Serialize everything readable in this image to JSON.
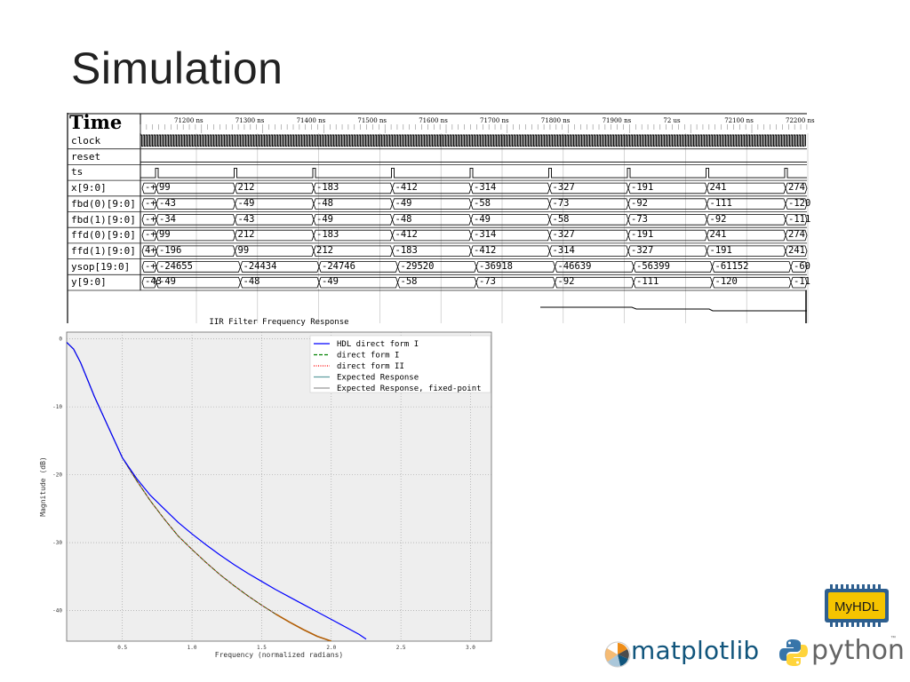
{
  "slide": {
    "title": "Simulation"
  },
  "waveform": {
    "title": "Time",
    "time_marks": [
      "71200 ns",
      "71300 ns",
      "71400 ns",
      "71500 ns",
      "71600 ns",
      "71700 ns",
      "71800 ns",
      "71900 ns",
      "72 us",
      "72100 ns",
      "72200 ns"
    ],
    "signals": [
      "clock",
      "reset",
      "ts",
      "x[9:0]",
      "fbd(0)[9:0]",
      "fbd(1)[9:0]",
      "ffd(0)[9:0]",
      "ffd(1)[9:0]",
      "ysop[19:0]",
      "y[9:0]"
    ],
    "rows": {
      "x": [
        "-+",
        "99",
        "212",
        "-183",
        "-412",
        "-314",
        "-327",
        "-191",
        "241",
        "274"
      ],
      "fbd0": [
        "-+",
        "-43",
        "-49",
        "-48",
        "-49",
        "-58",
        "-73",
        "-92",
        "-111",
        "-120"
      ],
      "fbd1": [
        "-+",
        "-34",
        "-43",
        "-49",
        "-48",
        "-49",
        "-58",
        "-73",
        "-92",
        "-111"
      ],
      "ffd0": [
        "-+",
        "99",
        "212",
        "-183",
        "-412",
        "-314",
        "-327",
        "-191",
        "241",
        "274"
      ],
      "ffd1": [
        "4+",
        "-196",
        "99",
        "212",
        "-183",
        "-412",
        "-314",
        "-327",
        "-191",
        "241"
      ],
      "ysop": [
        "-+",
        "-24655",
        "-24434",
        "-24746",
        "-29520",
        "-36918",
        "-46639",
        "-56399",
        "-61152",
        "-60"
      ],
      "y": [
        "-43",
        "-49",
        "-48",
        "-49",
        "-58",
        "-73",
        "-92",
        "-111",
        "-120",
        "-11"
      ]
    }
  },
  "chart_data": {
    "type": "line",
    "title": "IIR Filter Frequency Response",
    "xlabel": "Frequency (normalized radians)",
    "ylabel": "Magnitude (dB)",
    "xlim": [
      0.1,
      3.15
    ],
    "ylim": [
      -44.5,
      1
    ],
    "xticks": [
      "0.5",
      "1.0",
      "1.5",
      "2.0",
      "2.5",
      "3.0"
    ],
    "xtick_values": [
      0.5,
      1.0,
      1.5,
      2.0,
      2.5,
      3.0
    ],
    "yticks": [
      "0",
      "-10",
      "-20",
      "-30",
      "-40"
    ],
    "ytick_values": [
      0,
      -10,
      -20,
      -30,
      -40
    ],
    "grid": true,
    "legend_position": "top-right",
    "series": [
      {
        "name": "HDL direct form I",
        "color": "#0000ff",
        "style": "solid",
        "x": [
          0.1,
          0.15,
          0.2,
          0.25,
          0.3,
          0.4,
          0.5,
          0.6,
          0.7,
          0.8,
          0.9,
          1.0,
          1.1,
          1.2,
          1.3,
          1.4,
          1.5,
          1.6,
          1.7,
          1.8,
          1.9,
          2.0,
          2.1,
          2.2,
          2.25
        ],
        "y": [
          -0.5,
          -1.5,
          -3.5,
          -6.0,
          -8.5,
          -13.0,
          -17.5,
          -20.5,
          -23.0,
          -25.0,
          -27.0,
          -28.7,
          -30.3,
          -31.8,
          -33.2,
          -34.5,
          -35.7,
          -36.9,
          -38.0,
          -39.1,
          -40.2,
          -41.3,
          -42.4,
          -43.5,
          -44.2
        ]
      },
      {
        "name": "direct form I",
        "color": "#008000",
        "style": "dashed",
        "x": [
          0.1,
          0.15,
          0.2,
          0.25,
          0.3,
          0.4,
          0.5,
          0.6,
          0.7,
          0.8,
          0.9,
          1.0,
          1.1,
          1.2,
          1.3,
          1.4,
          1.5,
          1.6,
          1.7,
          1.8,
          1.9,
          2.0
        ],
        "y": [
          -0.5,
          -1.5,
          -3.5,
          -6.0,
          -8.5,
          -13.0,
          -17.5,
          -20.8,
          -23.8,
          -26.5,
          -29.0,
          -31.0,
          -32.9,
          -34.7,
          -36.3,
          -37.8,
          -39.2,
          -40.5,
          -41.7,
          -42.8,
          -43.8,
          -44.5
        ]
      },
      {
        "name": "direct form II",
        "color": "#ff0000",
        "style": "dotted",
        "x": [
          0.1,
          0.15,
          0.2,
          0.25,
          0.3,
          0.4,
          0.5,
          0.6,
          0.7,
          0.8,
          0.9,
          1.0,
          1.1,
          1.2,
          1.3,
          1.4,
          1.5,
          1.6,
          1.7,
          1.8,
          1.9,
          2.0
        ],
        "y": [
          -0.5,
          -1.5,
          -3.5,
          -6.0,
          -8.5,
          -13.0,
          -17.5,
          -20.8,
          -23.8,
          -26.5,
          -29.0,
          -31.0,
          -32.9,
          -34.7,
          -36.3,
          -37.8,
          -39.2,
          -40.5,
          -41.7,
          -42.8,
          -43.8,
          -44.5
        ]
      },
      {
        "name": "Expected Response",
        "color": "#5f9ea0",
        "style": "solid",
        "x": [
          0.1,
          0.15,
          0.2,
          0.25,
          0.3,
          0.4,
          0.5,
          0.6,
          0.7,
          0.8,
          0.9,
          1.0,
          1.1,
          1.2,
          1.3,
          1.4,
          1.5,
          1.6,
          1.7,
          1.8,
          1.9,
          2.0
        ],
        "y": [
          -0.5,
          -1.5,
          -3.5,
          -6.0,
          -8.5,
          -13.0,
          -17.5,
          -20.8,
          -23.8,
          -26.5,
          -29.0,
          -31.0,
          -32.9,
          -34.7,
          -36.3,
          -37.8,
          -39.2,
          -40.5,
          -41.7,
          -42.8,
          -43.8,
          -44.5
        ]
      },
      {
        "name": "Expected Response, fixed-point",
        "color": "#999999",
        "style": "solid",
        "x": [
          0.1,
          0.15,
          0.2,
          0.25,
          0.3,
          0.4,
          0.5,
          0.6,
          0.7,
          0.8,
          0.9,
          1.0,
          1.1,
          1.2,
          1.3,
          1.4,
          1.5,
          1.6,
          1.7,
          1.8,
          1.9,
          2.0
        ],
        "y": [
          -0.5,
          -1.5,
          -3.5,
          -6.0,
          -8.5,
          -13.0,
          -17.5,
          -20.8,
          -23.8,
          -26.5,
          -29.0,
          -31.0,
          -32.9,
          -34.7,
          -36.3,
          -37.8,
          -39.2,
          -40.5,
          -41.7,
          -42.8,
          -43.8,
          -44.5
        ]
      }
    ]
  },
  "logos": {
    "myhdl": "MyHDL",
    "matplotlib": "matplotlib",
    "python": "python",
    "python_tm": "™"
  }
}
